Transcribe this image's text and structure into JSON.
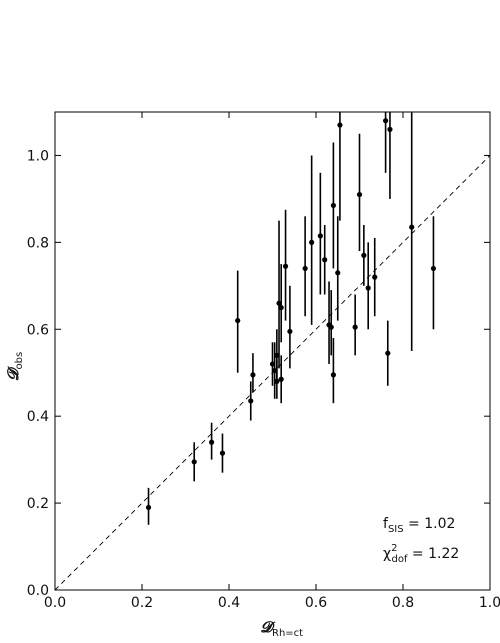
{
  "chart_data": {
    "type": "scatter",
    "title": "",
    "xlabel": {
      "main": "𝓓",
      "sub": "Rh=ct"
    },
    "ylabel": {
      "main": "𝓓",
      "sub": "obs"
    },
    "xlim": [
      0.0,
      1.0
    ],
    "ylim": [
      0.0,
      1.1
    ],
    "x_ticks": [
      0.0,
      0.2,
      0.4,
      0.6,
      0.8,
      1.0
    ],
    "y_ticks": [
      0.0,
      0.2,
      0.4,
      0.6,
      0.8,
      1.0
    ],
    "x_tick_labels": [
      "0.0",
      "0.2",
      "0.4",
      "0.6",
      "0.8",
      "1.0"
    ],
    "y_tick_labels": [
      "0.0",
      "0.2",
      "0.4",
      "0.6",
      "0.8",
      "1.0"
    ],
    "grid": false,
    "reference_line": {
      "style": "dashed",
      "from": [
        0.0,
        0.0
      ],
      "to": [
        1.0,
        1.0
      ]
    },
    "annotations": [
      {
        "main": "f",
        "sub": "SIS",
        "sup": "",
        "value": " = 1.02"
      },
      {
        "main": "χ",
        "sub": "dof",
        "sup": "2",
        "value": " = 1.22"
      }
    ],
    "points": [
      {
        "x": 0.215,
        "y": 0.19,
        "ylo": 0.15,
        "yhi": 0.235
      },
      {
        "x": 0.32,
        "y": 0.295,
        "ylo": 0.25,
        "yhi": 0.34
      },
      {
        "x": 0.36,
        "y": 0.34,
        "ylo": 0.3,
        "yhi": 0.385
      },
      {
        "x": 0.385,
        "y": 0.315,
        "ylo": 0.27,
        "yhi": 0.36
      },
      {
        "x": 0.42,
        "y": 0.62,
        "ylo": 0.5,
        "yhi": 0.735
      },
      {
        "x": 0.45,
        "y": 0.435,
        "ylo": 0.39,
        "yhi": 0.48
      },
      {
        "x": 0.455,
        "y": 0.495,
        "ylo": 0.455,
        "yhi": 0.545
      },
      {
        "x": 0.5,
        "y": 0.52,
        "ylo": 0.47,
        "yhi": 0.57
      },
      {
        "x": 0.505,
        "y": 0.505,
        "ylo": 0.44,
        "yhi": 0.57
      },
      {
        "x": 0.51,
        "y": 0.48,
        "ylo": 0.44,
        "yhi": 0.53
      },
      {
        "x": 0.51,
        "y": 0.54,
        "ylo": 0.48,
        "yhi": 0.6
      },
      {
        "x": 0.515,
        "y": 0.66,
        "ylo": 0.51,
        "yhi": 0.85
      },
      {
        "x": 0.52,
        "y": 0.65,
        "ylo": 0.57,
        "yhi": 0.75
      },
      {
        "x": 0.52,
        "y": 0.485,
        "ylo": 0.43,
        "yhi": 0.54
      },
      {
        "x": 0.53,
        "y": 0.745,
        "ylo": 0.62,
        "yhi": 0.875
      },
      {
        "x": 0.54,
        "y": 0.595,
        "ylo": 0.51,
        "yhi": 0.7
      },
      {
        "x": 0.575,
        "y": 0.74,
        "ylo": 0.63,
        "yhi": 0.86
      },
      {
        "x": 0.59,
        "y": 0.8,
        "ylo": 0.61,
        "yhi": 1.0
      },
      {
        "x": 0.61,
        "y": 0.815,
        "ylo": 0.68,
        "yhi": 0.96
      },
      {
        "x": 0.62,
        "y": 0.76,
        "ylo": 0.68,
        "yhi": 0.84
      },
      {
        "x": 0.63,
        "y": 0.61,
        "ylo": 0.52,
        "yhi": 0.71
      },
      {
        "x": 0.635,
        "y": 0.605,
        "ylo": 0.54,
        "yhi": 0.69
      },
      {
        "x": 0.64,
        "y": 0.885,
        "ylo": 0.74,
        "yhi": 1.03
      },
      {
        "x": 0.64,
        "y": 0.495,
        "ylo": 0.43,
        "yhi": 0.58
      },
      {
        "x": 0.65,
        "y": 0.73,
        "ylo": 0.62,
        "yhi": 0.86
      },
      {
        "x": 0.655,
        "y": 1.07,
        "ylo": 0.85,
        "yhi": 1.1
      },
      {
        "x": 0.69,
        "y": 0.605,
        "ylo": 0.54,
        "yhi": 0.68
      },
      {
        "x": 0.7,
        "y": 0.91,
        "ylo": 0.78,
        "yhi": 1.05
      },
      {
        "x": 0.71,
        "y": 0.77,
        "ylo": 0.7,
        "yhi": 0.84
      },
      {
        "x": 0.72,
        "y": 0.695,
        "ylo": 0.6,
        "yhi": 0.8
      },
      {
        "x": 0.735,
        "y": 0.72,
        "ylo": 0.63,
        "yhi": 0.81
      },
      {
        "x": 0.76,
        "y": 1.08,
        "ylo": 0.96,
        "yhi": 1.1
      },
      {
        "x": 0.765,
        "y": 0.545,
        "ylo": 0.47,
        "yhi": 0.62
      },
      {
        "x": 0.77,
        "y": 1.06,
        "ylo": 0.9,
        "yhi": 1.1
      },
      {
        "x": 0.82,
        "y": 0.835,
        "ylo": 0.55,
        "yhi": 1.1
      },
      {
        "x": 0.87,
        "y": 0.74,
        "ylo": 0.6,
        "yhi": 0.86
      }
    ]
  }
}
